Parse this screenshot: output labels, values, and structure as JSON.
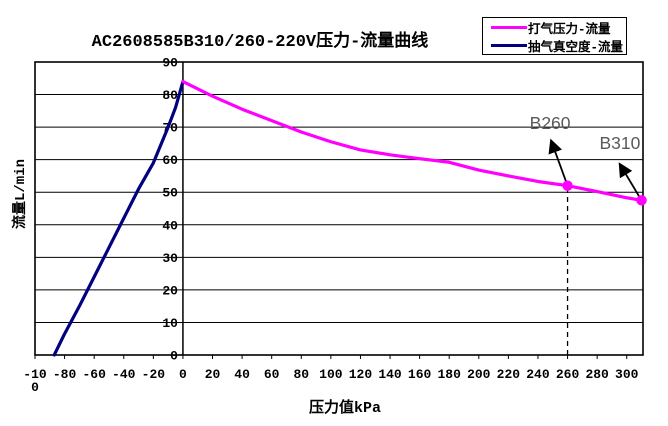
{
  "chart_data": {
    "type": "line",
    "title": "AC2608585B310/260-220V压力-流量曲线",
    "xlabel": "压力值kPa",
    "ylabel": "流量L/min",
    "xlim": [
      -100,
      311
    ],
    "ylim": [
      0,
      90
    ],
    "grid": "horizontal-only",
    "legend_position": "top-right",
    "axis_color": "#000000",
    "annotation_color": "#595959",
    "x_ticks": [
      {
        "v": -100,
        "lines": [
          "-10",
          "0"
        ]
      },
      {
        "v": -80,
        "lines": [
          "-80"
        ]
      },
      {
        "v": -60,
        "lines": [
          "-60"
        ]
      },
      {
        "v": -40,
        "lines": [
          "-40"
        ]
      },
      {
        "v": -20,
        "lines": [
          "-20"
        ]
      },
      {
        "v": 0,
        "lines": [
          "0"
        ]
      },
      {
        "v": 20,
        "lines": [
          "20"
        ]
      },
      {
        "v": 40,
        "lines": [
          "40"
        ]
      },
      {
        "v": 60,
        "lines": [
          "60"
        ]
      },
      {
        "v": 80,
        "lines": [
          "80"
        ]
      },
      {
        "v": 100,
        "lines": [
          "100"
        ]
      },
      {
        "v": 120,
        "lines": [
          "120"
        ]
      },
      {
        "v": 140,
        "lines": [
          "140"
        ]
      },
      {
        "v": 160,
        "lines": [
          "160"
        ]
      },
      {
        "v": 180,
        "lines": [
          "180"
        ]
      },
      {
        "v": 200,
        "lines": [
          "200"
        ]
      },
      {
        "v": 220,
        "lines": [
          "220"
        ]
      },
      {
        "v": 240,
        "lines": [
          "240"
        ]
      },
      {
        "v": 260,
        "lines": [
          "260"
        ]
      },
      {
        "v": 280,
        "lines": [
          "280"
        ]
      },
      {
        "v": 300,
        "lines": [
          "300"
        ]
      }
    ],
    "y_ticks": [
      90,
      80,
      70,
      60,
      50,
      40,
      30,
      20,
      10,
      0
    ],
    "series": [
      {
        "name": "抽气真空度-流量",
        "color": "#000080",
        "points": [
          [
            -87,
            0
          ],
          [
            -80,
            6.5
          ],
          [
            -70,
            15
          ],
          [
            -60,
            24
          ],
          [
            -50,
            33
          ],
          [
            -40,
            42
          ],
          [
            -30,
            51
          ],
          [
            -20,
            59
          ],
          [
            -10,
            70
          ],
          [
            -5,
            76
          ],
          [
            0,
            84
          ]
        ]
      },
      {
        "name": "打气压力-流量",
        "color": "#FF00FF",
        "points": [
          [
            0,
            84
          ],
          [
            20,
            79.5
          ],
          [
            40,
            75.5
          ],
          [
            60,
            72
          ],
          [
            80,
            68.5
          ],
          [
            100,
            65.5
          ],
          [
            120,
            63
          ],
          [
            140,
            61.5
          ],
          [
            160,
            60.3
          ],
          [
            180,
            59.2
          ],
          [
            200,
            56.8
          ],
          [
            220,
            55
          ],
          [
            240,
            53.3
          ],
          [
            260,
            52
          ],
          [
            280,
            50.2
          ],
          [
            300,
            48.3
          ],
          [
            310,
            47.5
          ]
        ]
      }
    ],
    "legend_order": [
      1,
      0
    ],
    "markers": [
      {
        "x": 260,
        "y": 52,
        "color": "#FF00FF"
      },
      {
        "x": 310,
        "y": 47.5,
        "color": "#FF00FF"
      }
    ],
    "reference_lines": [
      {
        "x": 260,
        "y_from": 0,
        "y_to": 52,
        "style": "dashed",
        "color": "#000000"
      }
    ],
    "annotations": [
      {
        "text": "B260",
        "point": [
          260,
          52
        ],
        "arrow_to": [
          249,
          65.7
        ],
        "label_at": [
          248.2,
          69.4
        ]
      },
      {
        "text": "B310",
        "point": [
          310,
          47.5
        ],
        "arrow_to": [
          295.5,
          58.5
        ],
        "label_at": [
          295.4,
          63.3
        ]
      }
    ]
  }
}
